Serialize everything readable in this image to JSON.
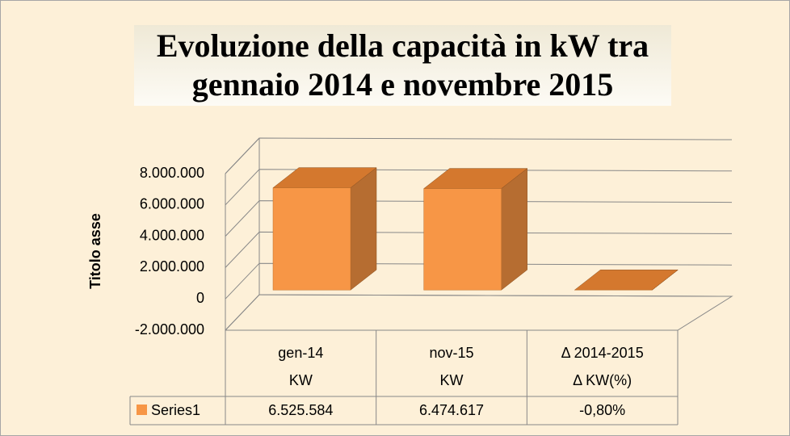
{
  "chart_data": {
    "type": "bar3d",
    "title": "Evoluzione della capacità in kW tra gennaio 2014 e novembre 2015",
    "y_label": "Titolo asse",
    "categories": [
      "gen-14",
      "nov-15",
      "Δ 2014-2015"
    ],
    "category_sublabels": [
      "KW",
      "KW",
      "Δ KW(%)"
    ],
    "series": [
      {
        "name": "Series1",
        "color": "#f79646",
        "values": [
          6525584,
          6474617,
          -0.8
        ],
        "value_labels": [
          "6.525.584",
          "6.474.617",
          "-0,80%"
        ]
      }
    ],
    "ylim": [
      -2000000,
      8000000
    ],
    "yticks": [
      {
        "value": -2000000,
        "label": "-2.000.000"
      },
      0,
      {
        "value": 2000000,
        "label": "2.000.000"
      },
      {
        "value": 4000000,
        "label": "4.000.000"
      },
      {
        "value": 6000000,
        "label": "6.000.000"
      },
      {
        "value": 8000000,
        "label": "8.000.000"
      }
    ],
    "grid": true
  }
}
